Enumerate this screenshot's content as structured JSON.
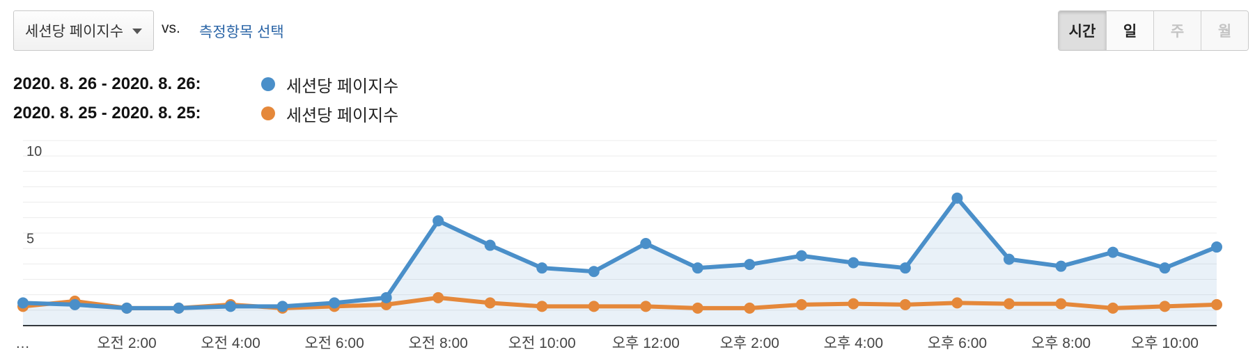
{
  "controls": {
    "metric_label": "세션당 페이지수",
    "vs_label": "vs.",
    "compare_link": "측정항목 선택",
    "periods": [
      {
        "label": "시간",
        "state": "active"
      },
      {
        "label": "일",
        "state": "normal"
      },
      {
        "label": "주",
        "state": "disabled"
      },
      {
        "label": "월",
        "state": "disabled"
      }
    ]
  },
  "legend": [
    {
      "range": "2020. 8. 26 - 2020. 8. 26:",
      "name": "세션당 페이지수",
      "color": "#4a8fc9"
    },
    {
      "range": "2020. 8. 25 - 2020. 8. 25:",
      "name": "세션당 페이지수",
      "color": "#e5883a"
    }
  ],
  "chart_data": {
    "type": "line",
    "x": [
      "오전 12:00",
      "오전 1:00",
      "오전 2:00",
      "오전 3:00",
      "오전 4:00",
      "오전 5:00",
      "오전 6:00",
      "오전 7:00",
      "오전 8:00",
      "오전 9:00",
      "오전 10:00",
      "오전 11:00",
      "오후 12:00",
      "오후 1:00",
      "오후 2:00",
      "오후 3:00",
      "오후 4:00",
      "오후 5:00",
      "오후 6:00",
      "오후 7:00",
      "오후 8:00",
      "오후 9:00",
      "오후 10:00",
      "오후 11:00"
    ],
    "x_tick_labels": [
      "…",
      "오전 2:00",
      "오전 4:00",
      "오전 6:00",
      "오전 8:00",
      "오전 10:00",
      "오후 12:00",
      "오후 2:00",
      "오후 4:00",
      "오후 6:00",
      "오후 8:00",
      "오후 10:00"
    ],
    "x_tick_indices": [
      0,
      2,
      4,
      6,
      8,
      10,
      12,
      14,
      16,
      18,
      20,
      22
    ],
    "y_tick_labels": [
      "10",
      "5"
    ],
    "y_ticks": [
      10,
      5
    ],
    "ylim": [
      0,
      10.6
    ],
    "grid": true,
    "series": [
      {
        "name": "세션당 페이지수",
        "range": "2020. 8. 26 - 2020. 8. 26",
        "color": "#4a8fc9",
        "filled": true,
        "values": [
          1.3,
          1.2,
          1.0,
          1.0,
          1.1,
          1.1,
          1.3,
          1.6,
          6.0,
          4.6,
          3.3,
          3.1,
          4.7,
          3.3,
          3.5,
          4.0,
          3.6,
          3.3,
          7.3,
          3.8,
          3.4,
          4.2,
          3.3,
          4.5
        ]
      },
      {
        "name": "세션당 페이지수",
        "range": "2020. 8. 25 - 2020. 8. 25",
        "color": "#e5883a",
        "filled": false,
        "values": [
          1.1,
          1.4,
          1.0,
          1.0,
          1.2,
          1.0,
          1.1,
          1.2,
          1.6,
          1.3,
          1.1,
          1.1,
          1.1,
          1.0,
          1.0,
          1.2,
          1.25,
          1.2,
          1.3,
          1.25,
          1.25,
          1.0,
          1.1,
          1.2
        ]
      }
    ]
  }
}
